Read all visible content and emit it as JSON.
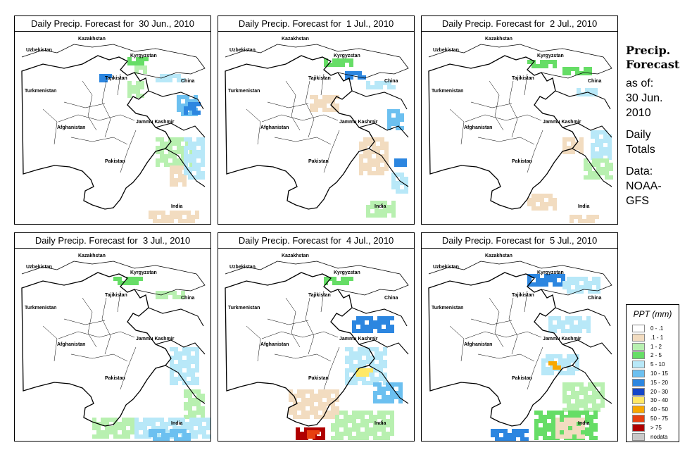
{
  "panels": [
    {
      "title": "Daily Precip. Forecast for  30 Jun., 2010"
    },
    {
      "title": "Daily Precip. Forecast for  1 Jul., 2010"
    },
    {
      "title": "Daily Precip. Forecast for  2 Jul., 2010"
    },
    {
      "title": "Daily Precip. Forecast for  3 Jul., 2010"
    },
    {
      "title": "Daily Precip. Forecast for  4 Jul., 2010"
    },
    {
      "title": "Daily Precip. Forecast for  5 Jul., 2010"
    }
  ],
  "map_labels": {
    "kazakhstan": "Kazakhstan",
    "uzbekistan": "Uzbekistan",
    "kyrgyzstan": "Kyrgyzstan",
    "tajikistan": "Tajikistan",
    "china": "China",
    "turkmenistan": "Turkmenistan",
    "jammu_kashmir": "Jammu Kashmir",
    "afghanistan": "Afghanistan",
    "pakistan": "Pakistan",
    "india": "India"
  },
  "side": {
    "title_line1": "Precip.",
    "title_line2": "Forecast",
    "as_of": "as of:",
    "date_line1": "30 Jun.",
    "date_line2": "2010",
    "totals_line1": "Daily",
    "totals_line2": "Totals",
    "data_line1": "Data:",
    "data_line2": "NOAA-",
    "data_line3": "GFS"
  },
  "legend": {
    "title": "PPT (mm)",
    "items": [
      {
        "label": "0 - .1",
        "color": "#ffffff"
      },
      {
        "label": ".1 - 1",
        "color": "#f2dcc0"
      },
      {
        "label": "1 - 2",
        "color": "#b8f0b0"
      },
      {
        "label": "2 - 5",
        "color": "#66dd66"
      },
      {
        "label": "5 - 10",
        "color": "#b8e8f8"
      },
      {
        "label": "10 - 15",
        "color": "#6cc0f0"
      },
      {
        "label": "15 - 20",
        "color": "#2c86e0"
      },
      {
        "label": "20 - 30",
        "color": "#1446c8"
      },
      {
        "label": "30 - 40",
        "color": "#ffe866"
      },
      {
        "label": "40 - 50",
        "color": "#f8a800"
      },
      {
        "label": "50 - 75",
        "color": "#e84010"
      },
      {
        "label": "> 75",
        "color": "#b00000"
      },
      {
        "label": "nodata",
        "color": "#c8c8c8"
      }
    ]
  }
}
